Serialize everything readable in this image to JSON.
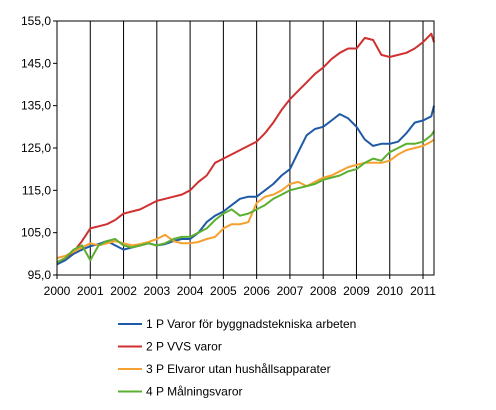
{
  "chart_data": {
    "type": "line",
    "title": "",
    "xlabel": "",
    "ylabel": "",
    "xlim": [
      2000.0,
      2011.33
    ],
    "ylim": [
      95,
      155
    ],
    "y_ticks": [
      "95,0",
      "105,0",
      "115,0",
      "125,0",
      "135,0",
      "145,0",
      "155,0"
    ],
    "y_tick_values": [
      95,
      105,
      115,
      125,
      135,
      145,
      155
    ],
    "x_ticks": [
      "2000",
      "2001",
      "2002",
      "2003",
      "2004",
      "2005",
      "2006",
      "2007",
      "2008",
      "2009",
      "2010",
      "2011"
    ],
    "x_tick_values": [
      2000,
      2001,
      2002,
      2003,
      2004,
      2005,
      2006,
      2007,
      2008,
      2009,
      2010,
      2011
    ],
    "grid": "vertical",
    "legend_position": "bottom",
    "series": [
      {
        "name": "1 P Varor för byggnadstekniska arbeten",
        "color": "#1f5aa6",
        "x": [
          2000.0,
          2000.25,
          2000.5,
          2000.75,
          2001.0,
          2001.25,
          2001.5,
          2001.75,
          2002.0,
          2002.25,
          2002.5,
          2002.75,
          2003.0,
          2003.25,
          2003.5,
          2003.75,
          2004.0,
          2004.25,
          2004.5,
          2004.75,
          2005.0,
          2005.25,
          2005.5,
          2005.75,
          2006.0,
          2006.25,
          2006.5,
          2006.75,
          2007.0,
          2007.25,
          2007.5,
          2007.75,
          2008.0,
          2008.25,
          2008.5,
          2008.75,
          2009.0,
          2009.25,
          2009.5,
          2009.75,
          2010.0,
          2010.25,
          2010.5,
          2010.75,
          2011.0,
          2011.25,
          2011.33
        ],
        "y": [
          97.5,
          98.5,
          100.0,
          101.0,
          101.8,
          102.3,
          103.0,
          102.0,
          101.0,
          101.5,
          102.0,
          102.5,
          102.0,
          102.3,
          103.0,
          103.5,
          103.5,
          105.0,
          107.5,
          109.0,
          110.0,
          111.5,
          113.0,
          113.5,
          113.5,
          115.0,
          116.5,
          118.5,
          120.0,
          124.0,
          128.0,
          129.5,
          130.0,
          131.5,
          133.0,
          132.0,
          130.0,
          127.0,
          125.5,
          126.0,
          126.0,
          126.5,
          128.5,
          131.0,
          131.5,
          132.5,
          135.0
        ]
      },
      {
        "name": "2 P VVS varor",
        "color": "#d03030",
        "x": [
          2000.0,
          2000.25,
          2000.5,
          2000.75,
          2001.0,
          2001.25,
          2001.5,
          2001.75,
          2002.0,
          2002.25,
          2002.5,
          2002.75,
          2003.0,
          2003.25,
          2003.5,
          2003.75,
          2004.0,
          2004.25,
          2004.5,
          2004.75,
          2005.0,
          2005.25,
          2005.5,
          2005.75,
          2006.0,
          2006.25,
          2006.5,
          2006.75,
          2007.0,
          2007.25,
          2007.5,
          2007.75,
          2008.0,
          2008.25,
          2008.5,
          2008.75,
          2009.0,
          2009.25,
          2009.5,
          2009.75,
          2010.0,
          2010.25,
          2010.5,
          2010.75,
          2011.0,
          2011.25,
          2011.33
        ],
        "y": [
          98.0,
          99.0,
          100.5,
          103.0,
          106.0,
          106.5,
          107.0,
          108.0,
          109.5,
          110.0,
          110.5,
          111.5,
          112.5,
          113.0,
          113.5,
          114.0,
          115.0,
          117.0,
          118.5,
          121.5,
          122.5,
          123.5,
          124.5,
          125.5,
          126.5,
          128.5,
          131.0,
          134.0,
          136.5,
          138.5,
          140.5,
          142.5,
          144.0,
          146.0,
          147.5,
          148.5,
          148.5,
          151.0,
          150.5,
          147.0,
          146.5,
          147.0,
          147.5,
          148.5,
          150.0,
          152.0,
          150.0
        ]
      },
      {
        "name": "3 P Elvaror utan hushållsapparater",
        "color": "#f5a030",
        "x": [
          2000.0,
          2000.25,
          2000.5,
          2000.75,
          2001.0,
          2001.25,
          2001.5,
          2001.75,
          2002.0,
          2002.25,
          2002.5,
          2002.75,
          2003.0,
          2003.25,
          2003.5,
          2003.75,
          2004.0,
          2004.25,
          2004.5,
          2004.75,
          2005.0,
          2005.25,
          2005.5,
          2005.75,
          2006.0,
          2006.25,
          2006.5,
          2006.75,
          2007.0,
          2007.25,
          2007.5,
          2007.75,
          2008.0,
          2008.25,
          2008.5,
          2008.75,
          2009.0,
          2009.25,
          2009.5,
          2009.75,
          2010.0,
          2010.25,
          2010.5,
          2010.75,
          2011.0,
          2011.25,
          2011.33
        ],
        "y": [
          99.0,
          99.5,
          100.5,
          101.5,
          102.5,
          102.0,
          102.5,
          103.0,
          102.5,
          102.0,
          102.3,
          102.8,
          103.5,
          104.5,
          103.0,
          102.5,
          102.5,
          102.8,
          103.5,
          104.0,
          106.0,
          107.0,
          107.0,
          107.5,
          112.0,
          113.5,
          114.0,
          115.0,
          116.5,
          117.0,
          116.0,
          117.0,
          118.0,
          118.5,
          119.5,
          120.5,
          121.0,
          121.5,
          121.5,
          121.5,
          122.0,
          123.5,
          124.5,
          125.0,
          125.5,
          126.5,
          127.0
        ]
      },
      {
        "name": "4 P Målningsvaror",
        "color": "#5cb030",
        "x": [
          2000.0,
          2000.25,
          2000.5,
          2000.75,
          2001.0,
          2001.25,
          2001.5,
          2001.75,
          2002.0,
          2002.25,
          2002.5,
          2002.75,
          2003.0,
          2003.25,
          2003.5,
          2003.75,
          2004.0,
          2004.25,
          2004.5,
          2004.75,
          2005.0,
          2005.25,
          2005.5,
          2005.75,
          2006.0,
          2006.25,
          2006.5,
          2006.75,
          2007.0,
          2007.25,
          2007.5,
          2007.75,
          2008.0,
          2008.25,
          2008.5,
          2008.75,
          2009.0,
          2009.25,
          2009.5,
          2009.75,
          2010.0,
          2010.25,
          2010.5,
          2010.75,
          2011.0,
          2011.25,
          2011.33
        ],
        "y": [
          98.0,
          99.0,
          101.0,
          102.0,
          98.5,
          102.0,
          103.0,
          103.5,
          102.0,
          101.5,
          102.0,
          102.5,
          102.0,
          102.5,
          103.5,
          104.0,
          104.0,
          105.0,
          106.0,
          108.0,
          109.5,
          110.5,
          109.0,
          109.5,
          110.5,
          111.5,
          113.0,
          114.0,
          115.0,
          115.5,
          116.0,
          116.5,
          117.5,
          118.0,
          118.5,
          119.5,
          120.0,
          121.5,
          122.5,
          122.0,
          124.0,
          125.0,
          126.0,
          126.0,
          126.5,
          128.0,
          129.0
        ]
      }
    ]
  }
}
